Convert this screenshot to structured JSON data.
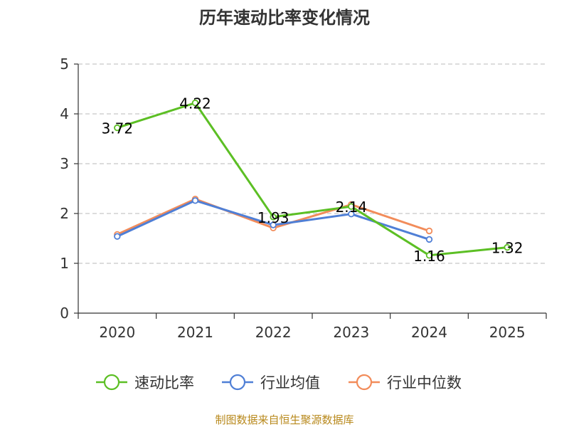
{
  "chart_data": {
    "type": "line",
    "title": "历年速动比率变化情况",
    "categories": [
      "2020",
      "2021",
      "2022",
      "2023",
      "2024",
      "2025"
    ],
    "ylim": [
      0,
      5
    ],
    "yticks": [
      "0",
      "1",
      "2",
      "3",
      "4",
      "5"
    ],
    "grid": true,
    "legend_position": "bottom",
    "series": [
      {
        "name": "速动比率",
        "color": "#5cbf24",
        "values": [
          3.72,
          4.22,
          1.93,
          2.14,
          1.16,
          1.32
        ],
        "labels": [
          "3.72",
          "4.22",
          "1.93",
          "2.14",
          "1.16",
          "1.32"
        ]
      },
      {
        "name": "行业均值",
        "color": "#4f7fd6",
        "values": [
          1.54,
          2.26,
          1.77,
          1.99,
          1.48,
          null
        ]
      },
      {
        "name": "行业中位数",
        "color": "#f28c5a",
        "values": [
          1.58,
          2.29,
          1.71,
          2.18,
          1.65,
          null
        ]
      }
    ],
    "source": "制图数据来自恒生聚源数据库"
  }
}
